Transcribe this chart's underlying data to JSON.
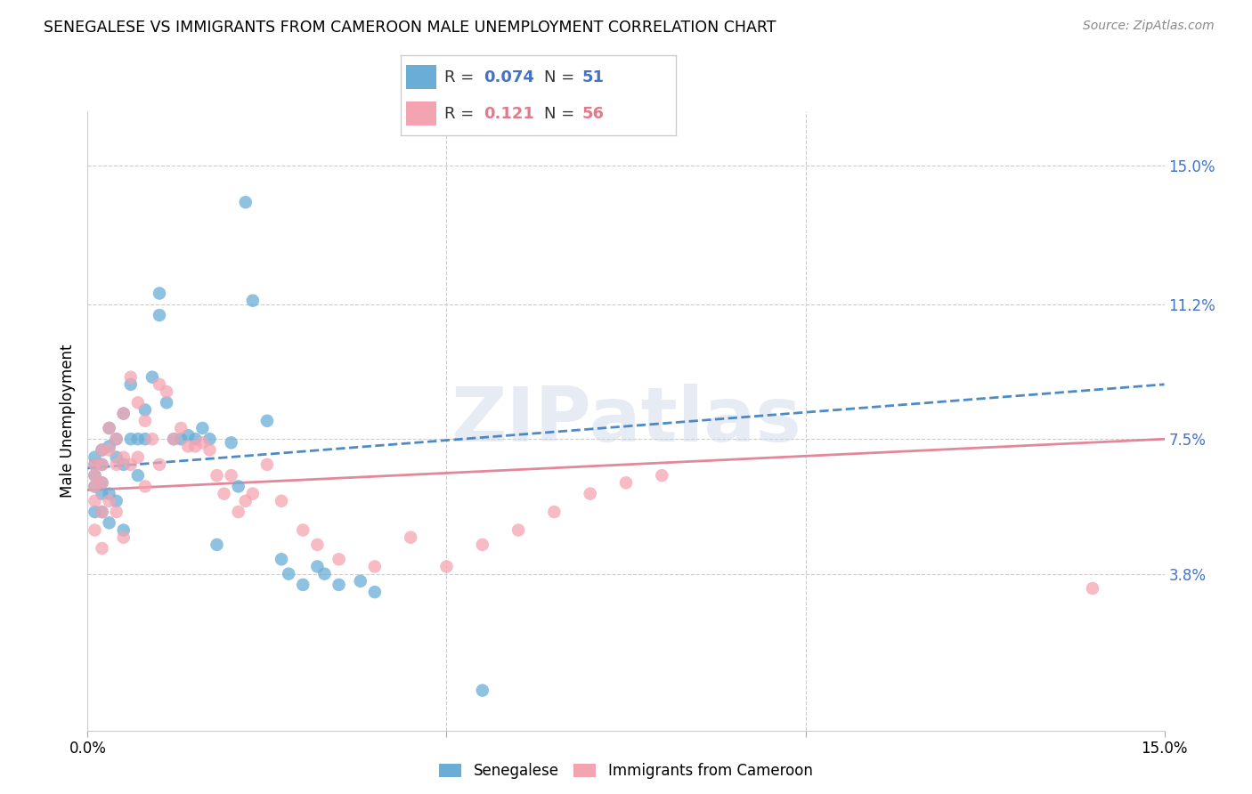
{
  "title": "SENEGALESE VS IMMIGRANTS FROM CAMEROON MALE UNEMPLOYMENT CORRELATION CHART",
  "source": "Source: ZipAtlas.com",
  "ylabel": "Male Unemployment",
  "ytick_labels": [
    "15.0%",
    "11.2%",
    "7.5%",
    "3.8%"
  ],
  "ytick_values": [
    0.15,
    0.112,
    0.075,
    0.038
  ],
  "xlim": [
    0.0,
    0.15
  ],
  "ylim": [
    -0.005,
    0.165
  ],
  "color_senegalese": "#6aaed6",
  "color_cameroon": "#f4a4b0",
  "color_line_senegalese": "#3a7fc1",
  "color_line_cameroon": "#e07a8f",
  "watermark": "ZIPatlas",
  "legend_r1": "0.074",
  "legend_n1": "51",
  "legend_r2": "0.121",
  "legend_n2": "56",
  "senegalese_x": [
    0.001,
    0.001,
    0.001,
    0.001,
    0.001,
    0.002,
    0.002,
    0.002,
    0.002,
    0.002,
    0.003,
    0.003,
    0.003,
    0.003,
    0.004,
    0.004,
    0.004,
    0.005,
    0.005,
    0.005,
    0.006,
    0.006,
    0.007,
    0.007,
    0.008,
    0.008,
    0.009,
    0.01,
    0.01,
    0.011,
    0.012,
    0.013,
    0.014,
    0.015,
    0.016,
    0.017,
    0.018,
    0.02,
    0.021,
    0.022,
    0.023,
    0.025,
    0.027,
    0.028,
    0.03,
    0.032,
    0.033,
    0.035,
    0.038,
    0.04,
    0.055
  ],
  "senegalese_y": [
    0.07,
    0.068,
    0.065,
    0.062,
    0.055,
    0.072,
    0.068,
    0.063,
    0.06,
    0.055,
    0.078,
    0.073,
    0.06,
    0.052,
    0.075,
    0.07,
    0.058,
    0.082,
    0.068,
    0.05,
    0.09,
    0.075,
    0.075,
    0.065,
    0.083,
    0.075,
    0.092,
    0.109,
    0.115,
    0.085,
    0.075,
    0.075,
    0.076,
    0.075,
    0.078,
    0.075,
    0.046,
    0.074,
    0.062,
    0.14,
    0.113,
    0.08,
    0.042,
    0.038,
    0.035,
    0.04,
    0.038,
    0.035,
    0.036,
    0.033,
    0.006
  ],
  "cameroon_x": [
    0.001,
    0.001,
    0.001,
    0.001,
    0.001,
    0.002,
    0.002,
    0.002,
    0.002,
    0.002,
    0.003,
    0.003,
    0.003,
    0.004,
    0.004,
    0.004,
    0.005,
    0.005,
    0.005,
    0.006,
    0.006,
    0.007,
    0.007,
    0.008,
    0.008,
    0.009,
    0.01,
    0.01,
    0.011,
    0.012,
    0.013,
    0.014,
    0.015,
    0.016,
    0.017,
    0.018,
    0.019,
    0.02,
    0.021,
    0.022,
    0.023,
    0.025,
    0.027,
    0.03,
    0.032,
    0.035,
    0.04,
    0.045,
    0.05,
    0.055,
    0.06,
    0.065,
    0.07,
    0.075,
    0.08,
    0.14
  ],
  "cameroon_y": [
    0.068,
    0.065,
    0.062,
    0.058,
    0.05,
    0.072,
    0.068,
    0.063,
    0.055,
    0.045,
    0.078,
    0.072,
    0.058,
    0.075,
    0.068,
    0.055,
    0.082,
    0.07,
    0.048,
    0.092,
    0.068,
    0.085,
    0.07,
    0.08,
    0.062,
    0.075,
    0.09,
    0.068,
    0.088,
    0.075,
    0.078,
    0.073,
    0.073,
    0.074,
    0.072,
    0.065,
    0.06,
    0.065,
    0.055,
    0.058,
    0.06,
    0.068,
    0.058,
    0.05,
    0.046,
    0.042,
    0.04,
    0.048,
    0.04,
    0.046,
    0.05,
    0.055,
    0.06,
    0.063,
    0.065,
    0.034
  ]
}
